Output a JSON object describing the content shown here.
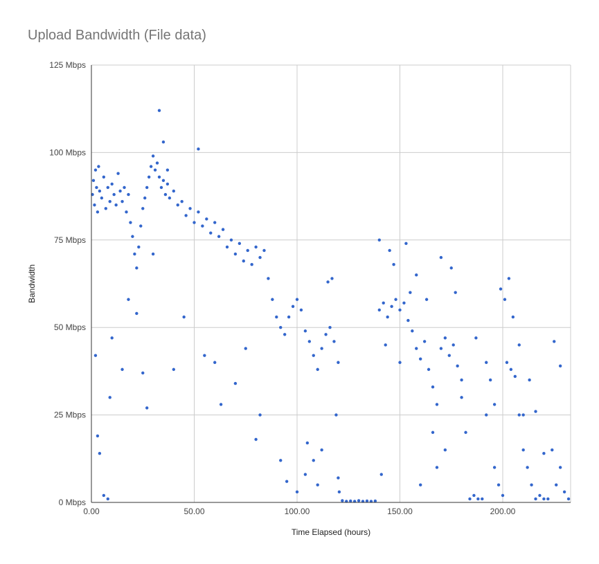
{
  "chart_data": {
    "type": "scatter",
    "title": "Upload Bandwidth (File data)",
    "xlabel": "Time Elapsed (hours)",
    "ylabel": "Bandwidth",
    "xlim": [
      0,
      233
    ],
    "ylim": [
      0,
      125
    ],
    "x_ticks": [
      0,
      50,
      100,
      150,
      200
    ],
    "x_tick_labels": [
      "0.00",
      "50.00",
      "100.00",
      "150.00",
      "200.00"
    ],
    "y_ticks": [
      0,
      25,
      50,
      75,
      100,
      125
    ],
    "y_tick_labels": [
      "0 Mbps",
      "25 Mbps",
      "50 Mbps",
      "75 Mbps",
      "100 Mbps",
      "125 Mbps"
    ],
    "grid": true,
    "legend": "none",
    "point_color": "#3366cc",
    "series": [
      {
        "points": [
          [
            0.5,
            88
          ],
          [
            1,
            92
          ],
          [
            1.5,
            85
          ],
          [
            2,
            95
          ],
          [
            2.5,
            90
          ],
          [
            3,
            83
          ],
          [
            3.5,
            96
          ],
          [
            4,
            89
          ],
          [
            5,
            87
          ],
          [
            6,
            93
          ],
          [
            7,
            84
          ],
          [
            8,
            90
          ],
          [
            9,
            86
          ],
          [
            10,
            91
          ],
          [
            11,
            88
          ],
          [
            12,
            85
          ],
          [
            13,
            94
          ],
          [
            14,
            89
          ],
          [
            15,
            86
          ],
          [
            16,
            90
          ],
          [
            17,
            83
          ],
          [
            18,
            88
          ],
          [
            19,
            80
          ],
          [
            20,
            76
          ],
          [
            21,
            71
          ],
          [
            22,
            67
          ],
          [
            23,
            73
          ],
          [
            24,
            79
          ],
          [
            25,
            84
          ],
          [
            26,
            87
          ],
          [
            27,
            90
          ],
          [
            28,
            93
          ],
          [
            29,
            96
          ],
          [
            30,
            99
          ],
          [
            31,
            95
          ],
          [
            32,
            97
          ],
          [
            33,
            93
          ],
          [
            34,
            90
          ],
          [
            35,
            92
          ],
          [
            36,
            88
          ],
          [
            37,
            91
          ],
          [
            38,
            87
          ],
          [
            40,
            89
          ],
          [
            42,
            85
          ],
          [
            44,
            86
          ],
          [
            46,
            82
          ],
          [
            48,
            84
          ],
          [
            50,
            80
          ],
          [
            52,
            83
          ],
          [
            54,
            79
          ],
          [
            56,
            81
          ],
          [
            58,
            77
          ],
          [
            60,
            80
          ],
          [
            62,
            76
          ],
          [
            64,
            78
          ],
          [
            66,
            73
          ],
          [
            68,
            75
          ],
          [
            70,
            71
          ],
          [
            72,
            74
          ],
          [
            74,
            69
          ],
          [
            76,
            72
          ],
          [
            78,
            68
          ],
          [
            80,
            73
          ],
          [
            82,
            70
          ],
          [
            84,
            72
          ],
          [
            86,
            64
          ],
          [
            88,
            58
          ],
          [
            90,
            53
          ],
          [
            92,
            50
          ],
          [
            94,
            48
          ],
          [
            96,
            53
          ],
          [
            98,
            56
          ],
          [
            100,
            58
          ],
          [
            102,
            55
          ],
          [
            104,
            49
          ],
          [
            106,
            46
          ],
          [
            108,
            42
          ],
          [
            110,
            38
          ],
          [
            112,
            44
          ],
          [
            114,
            48
          ],
          [
            116,
            50
          ],
          [
            118,
            46
          ],
          [
            120,
            40
          ],
          [
            120.5,
            3
          ],
          [
            122,
            0.5
          ],
          [
            124,
            0.3
          ],
          [
            126,
            0.4
          ],
          [
            128,
            0.3
          ],
          [
            130,
            0.5
          ],
          [
            132,
            0.3
          ],
          [
            134,
            0.4
          ],
          [
            136,
            0.3
          ],
          [
            138,
            0.4
          ],
          [
            140,
            55
          ],
          [
            142,
            57
          ],
          [
            144,
            53
          ],
          [
            146,
            56
          ],
          [
            148,
            58
          ],
          [
            150,
            55
          ],
          [
            152,
            57
          ],
          [
            154,
            52
          ],
          [
            156,
            49
          ],
          [
            158,
            44
          ],
          [
            160,
            41
          ],
          [
            162,
            46
          ],
          [
            164,
            38
          ],
          [
            166,
            33
          ],
          [
            168,
            28
          ],
          [
            170,
            44
          ],
          [
            172,
            47
          ],
          [
            174,
            42
          ],
          [
            176,
            45
          ],
          [
            178,
            39
          ],
          [
            180,
            30
          ],
          [
            182,
            20
          ],
          [
            184,
            1
          ],
          [
            186,
            2
          ],
          [
            188,
            1
          ],
          [
            190,
            1
          ],
          [
            192,
            25
          ],
          [
            194,
            35
          ],
          [
            196,
            10
          ],
          [
            198,
            5
          ],
          [
            200,
            2
          ],
          [
            202,
            40
          ],
          [
            204,
            38
          ],
          [
            206,
            36
          ],
          [
            208,
            25
          ],
          [
            210,
            15
          ],
          [
            212,
            10
          ],
          [
            214,
            5
          ],
          [
            216,
            1
          ],
          [
            218,
            2
          ],
          [
            220,
            1
          ],
          [
            222,
            1
          ],
          [
            224,
            15
          ],
          [
            226,
            5
          ],
          [
            228,
            10
          ],
          [
            230,
            3
          ],
          [
            232,
            1
          ],
          [
            2,
            42
          ],
          [
            3,
            19
          ],
          [
            4,
            14
          ],
          [
            6,
            2
          ],
          [
            8,
            1
          ],
          [
            9,
            30
          ],
          [
            10,
            47
          ],
          [
            15,
            38
          ],
          [
            18,
            58
          ],
          [
            22,
            54
          ],
          [
            25,
            37
          ],
          [
            27,
            27
          ],
          [
            30,
            71
          ],
          [
            33,
            112
          ],
          [
            35,
            103
          ],
          [
            37,
            95
          ],
          [
            40,
            38
          ],
          [
            45,
            53
          ],
          [
            52,
            101
          ],
          [
            55,
            42
          ],
          [
            60,
            40
          ],
          [
            63,
            28
          ],
          [
            70,
            34
          ],
          [
            75,
            44
          ],
          [
            80,
            18
          ],
          [
            82,
            25
          ],
          [
            92,
            12
          ],
          [
            95,
            6
          ],
          [
            100,
            3
          ],
          [
            104,
            8
          ],
          [
            105,
            17
          ],
          [
            108,
            12
          ],
          [
            110,
            5
          ],
          [
            112,
            15
          ],
          [
            115,
            63
          ],
          [
            117,
            64
          ],
          [
            119,
            25
          ],
          [
            120,
            7
          ],
          [
            140,
            75
          ],
          [
            141,
            8
          ],
          [
            143,
            45
          ],
          [
            145,
            72
          ],
          [
            147,
            68
          ],
          [
            150,
            40
          ],
          [
            153,
            74
          ],
          [
            155,
            60
          ],
          [
            158,
            65
          ],
          [
            160,
            5
          ],
          [
            163,
            58
          ],
          [
            166,
            20
          ],
          [
            168,
            10
          ],
          [
            170,
            70
          ],
          [
            172,
            15
          ],
          [
            175,
            67
          ],
          [
            177,
            60
          ],
          [
            180,
            35
          ],
          [
            187,
            47
          ],
          [
            192,
            40
          ],
          [
            196,
            28
          ],
          [
            199,
            61
          ],
          [
            201,
            58
          ],
          [
            203,
            64
          ],
          [
            205,
            53
          ],
          [
            208,
            45
          ],
          [
            210,
            25
          ],
          [
            213,
            35
          ],
          [
            216,
            26
          ],
          [
            220,
            14
          ],
          [
            225,
            46
          ],
          [
            228,
            39
          ]
        ]
      }
    ]
  }
}
